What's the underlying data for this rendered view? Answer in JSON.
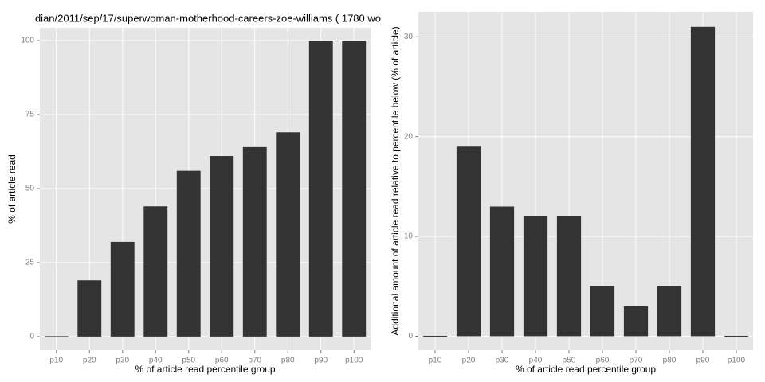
{
  "chart_data": [
    {
      "type": "bar",
      "title": "dian/2011/sep/17/superwoman-motherhood-careers-zoe-williams ( 1780 wo",
      "x_label": "% of article read percentile group",
      "y_label": "% of article read",
      "categories": [
        "p10",
        "p20",
        "p30",
        "p40",
        "p50",
        "p60",
        "p70",
        "p80",
        "p90",
        "p100"
      ],
      "values": [
        0,
        19,
        32,
        44,
        56,
        61,
        64,
        69,
        100,
        100
      ],
      "color": "#333333",
      "ylim": [
        -4.6,
        104.3
      ],
      "yticks": [
        0,
        25,
        50,
        75,
        100
      ],
      "grid": true
    },
    {
      "type": "bar",
      "x_label": "% of article read percentile group",
      "y_label": "Additional amount of article read relative to percentile below (% of article)",
      "categories": [
        "p10",
        "p20",
        "p30",
        "p40",
        "p50",
        "p60",
        "p70",
        "p80",
        "p90",
        "p100"
      ],
      "values": [
        0,
        19,
        13,
        12,
        12,
        5,
        3,
        5,
        31,
        0
      ],
      "color": "#333333",
      "ylim": [
        -1.4,
        32.5
      ],
      "yticks": [
        0,
        10,
        20,
        30
      ],
      "grid": true
    }
  ]
}
